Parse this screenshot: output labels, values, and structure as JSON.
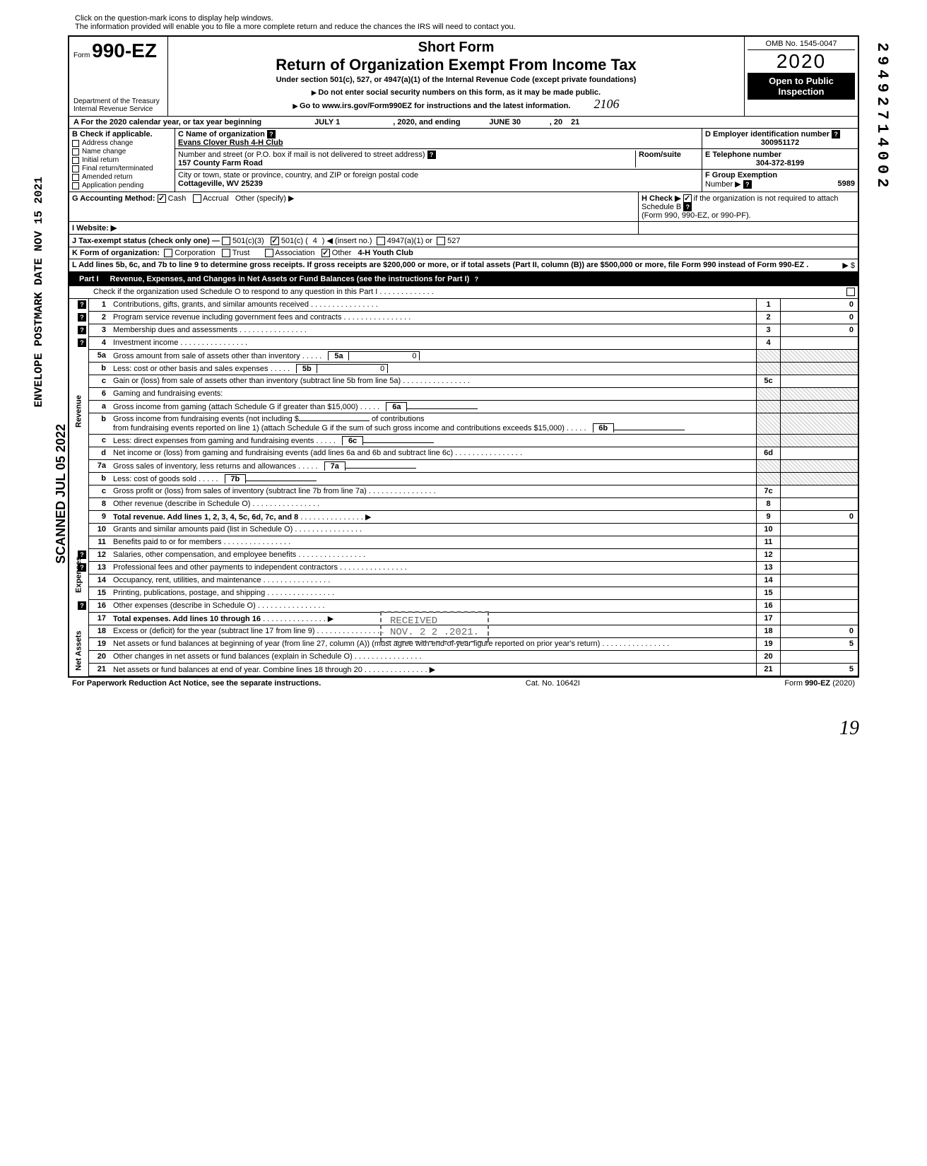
{
  "hint1": "Click on the question-mark icons to display help windows.",
  "hint2": "The information provided will enable you to file a more complete return and reduce the chances the IRS will need to contact you.",
  "form_label": "Form",
  "form_number": "990-EZ",
  "dept": "Department of the Treasury",
  "irs": "Internal Revenue Service",
  "title_short": "Short Form",
  "title_main": "Return of Organization Exempt From Income Tax",
  "subtitle": "Under section 501(c), 527, or 4947(a)(1) of the Internal Revenue Code (except private foundations)",
  "instr1": "Do not enter social security numbers on this form, as it may be made public.",
  "instr2": "Go to www.irs.gov/Form990EZ for instructions and the latest information.",
  "omb": "OMB No. 1545-0047",
  "year": "2020",
  "open_pub1": "Open to Public",
  "open_pub2": "Inspection",
  "cal_year": "A For the 2020 calendar year, or tax year beginning",
  "begin_date": "JULY 1",
  "cal_mid": ", 2020, and ending",
  "end_date": "JUNE 30",
  "cal_end": ", 20",
  "end_year": "21",
  "b_label": "B Check if applicable.",
  "b_items": [
    "Address change",
    "Name change",
    "Initial return",
    "Final return/terminated",
    "Amended return",
    "Application pending"
  ],
  "c_label": "C Name of organization",
  "org_name": "Evans Clover Rush 4-H Club",
  "addr_label": "Number and street (or P.O. box if mail is not delivered to street address)",
  "room_label": "Room/suite",
  "street": "157 County Farm Road",
  "city_label": "City or town, state or province, country, and ZIP or foreign postal code",
  "city": "Cottageville, WV 25239",
  "d_label": "D Employer identification number",
  "ein": "300951172",
  "e_label": "E Telephone number",
  "phone": "304-372-8199",
  "f_label": "F Group Exemption",
  "f_label2": "Number",
  "group_num": "5989",
  "g_label": "G  Accounting Method:",
  "g_cash": "Cash",
  "g_accrual": "Accrual",
  "g_other": "Other (specify)",
  "h_label": "H Check ▶",
  "h_text": "if the organization is not required to attach Schedule B",
  "h_text2": "(Form 990, 990-EZ, or 990-PF).",
  "i_label": "I   Website: ▶",
  "j_label": "J Tax-exempt status (check only one) —",
  "j_501c3": "501(c)(3)",
  "j_501c": "501(c) (",
  "j_insert_num": "4",
  "j_insert": ") ◀ (insert no.)",
  "j_4947": "4947(a)(1) or",
  "j_527": "527",
  "k_label": "K  Form of organization:",
  "k_corp": "Corporation",
  "k_trust": "Trust",
  "k_assoc": "Association",
  "k_other": "Other",
  "k_other_val": "4-H Youth Club",
  "l_text": "L  Add lines 5b, 6c, and 7b to line 9 to determine gross receipts. If gross receipts are $200,000 or more, or if total assets (Part II, column (B)) are $500,000 or more, file Form 990 instead of Form 990-EZ .",
  "l_arrow": "▶   $",
  "part1_label": "Part I",
  "part1_title": "Revenue, Expenses, and Changes in Net Assets or Fund Balances (see the instructions for Part I)",
  "part1_check": "Check if the organization used Schedule O to respond to any question in this Part I",
  "revenue_label": "Revenue",
  "expenses_label": "Expenses",
  "netassets_label": "Net Assets",
  "lines": {
    "1": {
      "num": "1",
      "desc": "Contributions, gifts, grants, and similar amounts received",
      "box": "1",
      "amt": "0",
      "help": true
    },
    "2": {
      "num": "2",
      "desc": "Program service revenue including government fees and contracts",
      "box": "2",
      "amt": "0",
      "help": true
    },
    "3": {
      "num": "3",
      "desc": "Membership dues and assessments",
      "box": "3",
      "amt": "0",
      "help": true
    },
    "4": {
      "num": "4",
      "desc": "Investment income",
      "box": "4",
      "amt": "",
      "help": true
    },
    "5a": {
      "num": "5a",
      "desc": "Gross amount from sale of assets other than inventory",
      "ibox": "5a",
      "iamt": "0"
    },
    "5b": {
      "num": "b",
      "desc": "Less: cost or other basis and sales expenses",
      "ibox": "5b",
      "iamt": "0"
    },
    "5c": {
      "num": "c",
      "desc": "Gain or (loss) from sale of assets other than inventory (subtract line 5b from line 5a)",
      "box": "5c",
      "amt": ""
    },
    "6": {
      "num": "6",
      "desc": "Gaming and fundraising events:"
    },
    "6a": {
      "num": "a",
      "desc": "Gross income from gaming (attach Schedule G if greater than $15,000)",
      "ibox": "6a",
      "iamt": ""
    },
    "6b": {
      "num": "b",
      "desc_pre": "Gross income from fundraising events (not including  $",
      "desc_mid": "of contributions",
      "desc_post": "from fundraising events reported on line 1) (attach Schedule G if the sum of such gross income and contributions exceeds $15,000)",
      "ibox": "6b",
      "iamt": ""
    },
    "6c": {
      "num": "c",
      "desc": "Less: direct expenses from gaming and fundraising events",
      "ibox": "6c",
      "iamt": ""
    },
    "6d": {
      "num": "d",
      "desc": "Net income or (loss) from gaming and fundraising events (add lines 6a and 6b and subtract line 6c)",
      "box": "6d",
      "amt": ""
    },
    "7a": {
      "num": "7a",
      "desc": "Gross sales of inventory, less returns and allowances",
      "ibox": "7a",
      "iamt": ""
    },
    "7b": {
      "num": "b",
      "desc": "Less: cost of goods sold",
      "ibox": "7b",
      "iamt": ""
    },
    "7c": {
      "num": "c",
      "desc": "Gross profit or (loss) from sales of inventory (subtract line 7b from line 7a)",
      "box": "7c",
      "amt": ""
    },
    "8": {
      "num": "8",
      "desc": "Other revenue (describe in Schedule O)",
      "box": "8",
      "amt": ""
    },
    "9": {
      "num": "9",
      "desc": "Total revenue. Add lines 1, 2, 3, 4, 5c, 6d, 7c, and 8",
      "box": "9",
      "amt": "0",
      "bold": true,
      "arrow": true
    },
    "10": {
      "num": "10",
      "desc": "Grants and similar amounts paid (list in Schedule O)",
      "box": "10",
      "amt": ""
    },
    "11": {
      "num": "11",
      "desc": "Benefits paid to or for members",
      "box": "11",
      "amt": ""
    },
    "12": {
      "num": "12",
      "desc": "Salaries, other compensation, and employee benefits",
      "box": "12",
      "amt": "",
      "help": true
    },
    "13": {
      "num": "13",
      "desc": "Professional fees and other payments to independent contractors",
      "box": "13",
      "amt": "",
      "help": true
    },
    "14": {
      "num": "14",
      "desc": "Occupancy, rent, utilities, and maintenance",
      "box": "14",
      "amt": ""
    },
    "15": {
      "num": "15",
      "desc": "Printing, publications, postage, and shipping",
      "box": "15",
      "amt": ""
    },
    "16": {
      "num": "16",
      "desc": "Other expenses (describe in Schedule O)",
      "box": "16",
      "amt": "",
      "help": true
    },
    "17": {
      "num": "17",
      "desc": "Total expenses. Add lines 10 through 16",
      "box": "17",
      "amt": "",
      "bold": true,
      "arrow": true
    },
    "18": {
      "num": "18",
      "desc": "Excess or (deficit) for the year (subtract line 17 from line 9)",
      "box": "18",
      "amt": "0"
    },
    "19": {
      "num": "19",
      "desc": "Net assets or fund balances at beginning of year (from line 27, column (A)) (must agree with end-of-year figure reported on prior year's return)",
      "box": "19",
      "amt": "5"
    },
    "20": {
      "num": "20",
      "desc": "Other changes in net assets or fund balances (explain in Schedule O)",
      "box": "20",
      "amt": ""
    },
    "21": {
      "num": "21",
      "desc": "Net assets or fund balances at end of year. Combine lines 18 through 20",
      "box": "21",
      "amt": "5",
      "arrow": true
    }
  },
  "footer_left": "For Paperwork Reduction Act Notice, see the separate instructions.",
  "footer_mid": "Cat. No. 10642I",
  "footer_right": "Form 990-EZ (2020)",
  "stamp_postmark": "ENVELOPE\nPOSTMARK DATE  NOV 15 2021",
  "stamp_scanned": "SCANNED JUL 05 2022",
  "stamp_right": "29492714002",
  "stamp_received": "RECEIVED",
  "stamp_received_date": "NOV. 2 2 .2021.",
  "handwrite_2106": "2106",
  "handwrite_19": "19"
}
